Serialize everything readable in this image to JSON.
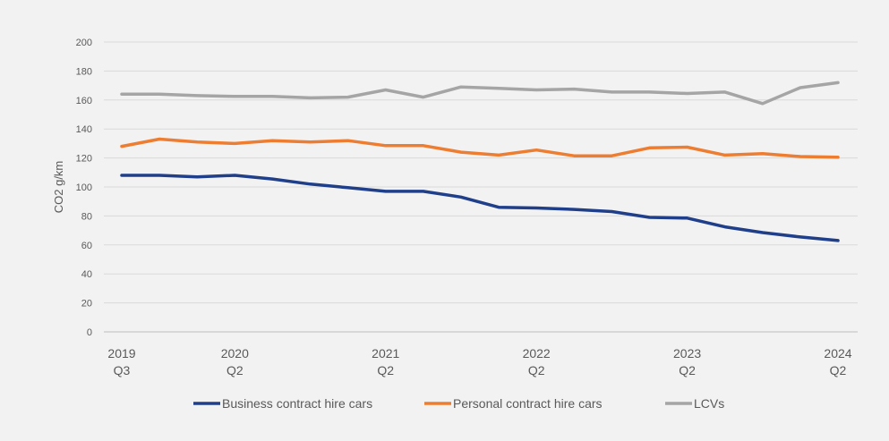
{
  "chart_data": {
    "type": "line",
    "title": "",
    "xlabel": "",
    "ylabel": "CO2 g/km",
    "ylim": [
      0,
      200
    ],
    "yticks": [
      0,
      20,
      40,
      60,
      80,
      100,
      120,
      140,
      160,
      180,
      200
    ],
    "grid": true,
    "legend": "bottom",
    "x": [
      "2019 Q3",
      "2019 Q4",
      "2020 Q1",
      "2020 Q2",
      "2020 Q3",
      "2020 Q4",
      "2021 Q1",
      "2021 Q2",
      "2021 Q3",
      "2021 Q4",
      "2022 Q1",
      "2022 Q2",
      "2022 Q3",
      "2022 Q4",
      "2023 Q1",
      "2023 Q2",
      "2023 Q3",
      "2023 Q4",
      "2024 Q1",
      "2024 Q2"
    ],
    "x_tick_labels": [
      {
        "index": 0,
        "line1": "2019",
        "line2": "Q3"
      },
      {
        "index": 3,
        "line1": "2020",
        "line2": "Q2"
      },
      {
        "index": 7,
        "line1": "2021",
        "line2": "Q2"
      },
      {
        "index": 11,
        "line1": "2022",
        "line2": "Q2"
      },
      {
        "index": 15,
        "line1": "2023",
        "line2": "Q2"
      },
      {
        "index": 19,
        "line1": "2024",
        "line2": "Q2"
      }
    ],
    "series": [
      {
        "name": "Business contract hire cars",
        "color": "#1f3f8a",
        "values": [
          108,
          108,
          107,
          108,
          105.5,
          102,
          99.5,
          97,
          97,
          93,
          86,
          85.5,
          84.5,
          83,
          79,
          78.5,
          72.5,
          68.5,
          65.5,
          63
        ]
      },
      {
        "name": "Personal contract hire cars",
        "color": "#ed7d31",
        "values": [
          128,
          133,
          131,
          130,
          132,
          131,
          132,
          128.5,
          128.5,
          124,
          122,
          125.5,
          121.5,
          121.5,
          127,
          127.5,
          122,
          123,
          121,
          120.5
        ]
      },
      {
        "name": "LCVs",
        "color": "#a5a5a5",
        "values": [
          164,
          164,
          163,
          162.5,
          162.5,
          161.5,
          162,
          167,
          162,
          169,
          168,
          167,
          167.5,
          165.5,
          165.5,
          164.5,
          165.5,
          157.5,
          168.5,
          172
        ]
      }
    ]
  }
}
